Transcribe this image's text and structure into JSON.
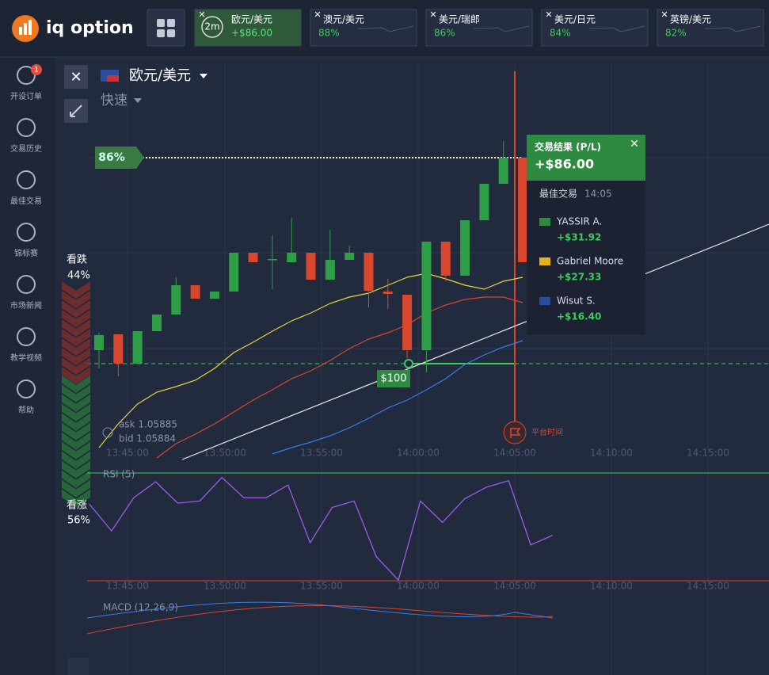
{
  "header": {
    "logo": "iq option",
    "tabs": [
      {
        "time": "2m",
        "pair": "欧元/美元",
        "profit": "+$86.00"
      },
      {
        "pair": "澳元/美元",
        "payout": "88%"
      },
      {
        "pair": "美元/瑞郎",
        "payout": "86%"
      },
      {
        "pair": "美元/日元",
        "payout": "84%"
      },
      {
        "pair": "英镑/美元",
        "payout": "82%"
      }
    ]
  },
  "sidebar": {
    "badge": "1",
    "items": [
      "开设订单",
      "交易历史",
      "最佳交易",
      "锦标赛",
      "市场新闻",
      "教学视频",
      "帮助"
    ]
  },
  "asset": {
    "pair": "欧元/美元",
    "mode": "快速"
  },
  "payout_tag": "86%",
  "sentiment": {
    "down_label": "看跌",
    "down": {
      "value": 44,
      "label": "44%"
    },
    "up_label": "看涨",
    "up": {
      "value": 56,
      "label": "56%"
    }
  },
  "quotes": {
    "ask": "ask 1.05885",
    "bid": "bid 1.05884"
  },
  "investment": "$100",
  "platform_time": "平台时间",
  "time_axis": [
    "13:45:00",
    "13:50:00",
    "13:55:00",
    "14:00:00",
    "14:05:00",
    "14:10:00",
    "14:15:00"
  ],
  "price_chart": {
    "ylim": [
      1.054,
      1.06
    ],
    "candles": [
      {
        "open": 1.05558,
        "high": 1.0558,
        "low": 1.05535,
        "close": 1.05577
      },
      {
        "open": 1.05578,
        "high": 1.05578,
        "low": 1.05525,
        "close": 1.05541
      },
      {
        "open": 1.05541,
        "high": 1.05582,
        "low": 1.05541,
        "close": 1.05582
      },
      {
        "open": 1.05582,
        "high": 1.05603,
        "low": 1.05582,
        "close": 1.05603
      },
      {
        "open": 1.05603,
        "high": 1.0565,
        "low": 1.05603,
        "close": 1.0564
      },
      {
        "open": 1.0564,
        "high": 1.0564,
        "low": 1.05623,
        "close": 1.05623
      },
      {
        "open": 1.05623,
        "high": 1.05632,
        "low": 1.05623,
        "close": 1.05632
      },
      {
        "open": 1.05632,
        "high": 1.05681,
        "low": 1.05632,
        "close": 1.05681
      },
      {
        "open": 1.05681,
        "high": 1.05681,
        "low": 1.05669,
        "close": 1.05669
      },
      {
        "open": 1.05672,
        "high": 1.05703,
        "low": 1.05635,
        "close": 1.05673
      },
      {
        "open": 1.05669,
        "high": 1.05725,
        "low": 1.05669,
        "close": 1.05681
      },
      {
        "open": 1.05681,
        "high": 1.05681,
        "low": 1.05647,
        "close": 1.05647
      },
      {
        "open": 1.05647,
        "high": 1.0571,
        "low": 1.05647,
        "close": 1.05672
      },
      {
        "open": 1.05672,
        "high": 1.0569,
        "low": 1.05672,
        "close": 1.05681
      },
      {
        "open": 1.05681,
        "high": 1.05681,
        "low": 1.05612,
        "close": 1.05633
      },
      {
        "open": 1.05632,
        "high": 1.05648,
        "low": 1.0561,
        "close": 1.05629
      },
      {
        "open": 1.05628,
        "high": 1.05628,
        "low": 1.05548,
        "close": 1.05558
      },
      {
        "open": 1.05558,
        "high": 1.05695,
        "low": 1.0553,
        "close": 1.05695
      },
      {
        "open": 1.05695,
        "high": 1.05695,
        "low": 1.05645,
        "close": 1.05652
      },
      {
        "open": 1.05652,
        "high": 1.05722,
        "low": 1.05652,
        "close": 1.05722
      },
      {
        "open": 1.05722,
        "high": 1.05768,
        "low": 1.05722,
        "close": 1.05768
      },
      {
        "open": 1.05768,
        "high": 1.05822,
        "low": 1.05768,
        "close": 1.05801
      },
      {
        "open": 1.05801,
        "high": 1.05801,
        "low": 1.05669,
        "close": 1.05669
      }
    ],
    "ma": [
      {
        "color": "#e6d63c",
        "values": [
          1.05435,
          1.05465,
          1.0549,
          1.05505,
          1.05512,
          1.0552,
          1.05535,
          1.05555,
          1.05568,
          1.05582,
          1.05595,
          1.05605,
          1.05617,
          1.05625,
          1.0563,
          1.0564,
          1.0565,
          1.05655,
          1.05648,
          1.0564,
          1.05635,
          1.05645,
          1.0565
        ]
      },
      {
        "color": "#d9472f",
        "values": [
          null,
          null,
          null,
          1.05422,
          1.0544,
          1.05452,
          1.05465,
          1.0548,
          1.05495,
          1.05508,
          1.05522,
          1.05532,
          1.05545,
          1.0556,
          1.05572,
          1.0558,
          1.0559,
          1.05605,
          1.05615,
          1.05622,
          1.05625,
          1.05625,
          1.05618
        ]
      },
      {
        "color": "#3b7de8",
        "values": [
          null,
          null,
          null,
          null,
          null,
          null,
          null,
          null,
          null,
          1.05427,
          1.05435,
          1.05442,
          1.0545,
          1.0546,
          1.05472,
          1.05485,
          1.05495,
          1.05508,
          1.05522,
          1.0554,
          1.05552,
          1.05562,
          1.0557
        ]
      }
    ]
  },
  "rsi": {
    "label": "RSI (5)",
    "ylim": [
      0,
      100
    ],
    "color": "#9b5de5",
    "values": [
      73,
      48,
      79,
      94,
      74,
      76,
      98,
      79,
      79,
      91,
      37,
      70,
      76,
      24,
      2,
      76,
      56,
      78,
      89,
      95,
      35,
      44
    ]
  },
  "macd": {
    "label": "MACD (12,26,9)"
  },
  "result": {
    "title": "交易结果 (P/L)",
    "profit": "+$86.00",
    "best_label": "最佳交易",
    "best_time": "14:05",
    "traders": [
      {
        "name": "YASSIR A.",
        "profit": "+$31.92"
      },
      {
        "name": "Gabriel Moore",
        "profit": "+$27.33"
      },
      {
        "name": "Wisut S.",
        "profit": "+$16.40"
      }
    ]
  }
}
